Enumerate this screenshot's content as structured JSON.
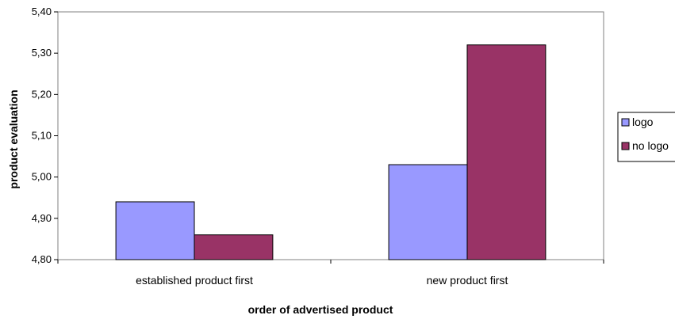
{
  "chart_data": {
    "type": "bar",
    "categories": [
      "established product first",
      "new product first"
    ],
    "series": [
      {
        "name": "logo",
        "values": [
          4.94,
          5.03
        ],
        "color": "#9999ff"
      },
      {
        "name": "no logo",
        "values": [
          4.86,
          5.32
        ],
        "color": "#993366"
      }
    ],
    "title": "",
    "xlabel": "order of advertised product",
    "ylabel": "product evaluation",
    "ylim": [
      4.8,
      5.4
    ],
    "yticks": [
      "4,80",
      "4,90",
      "5,00",
      "5,10",
      "5,20",
      "5,30",
      "5,40"
    ],
    "grid": false,
    "legend_position": "right"
  }
}
